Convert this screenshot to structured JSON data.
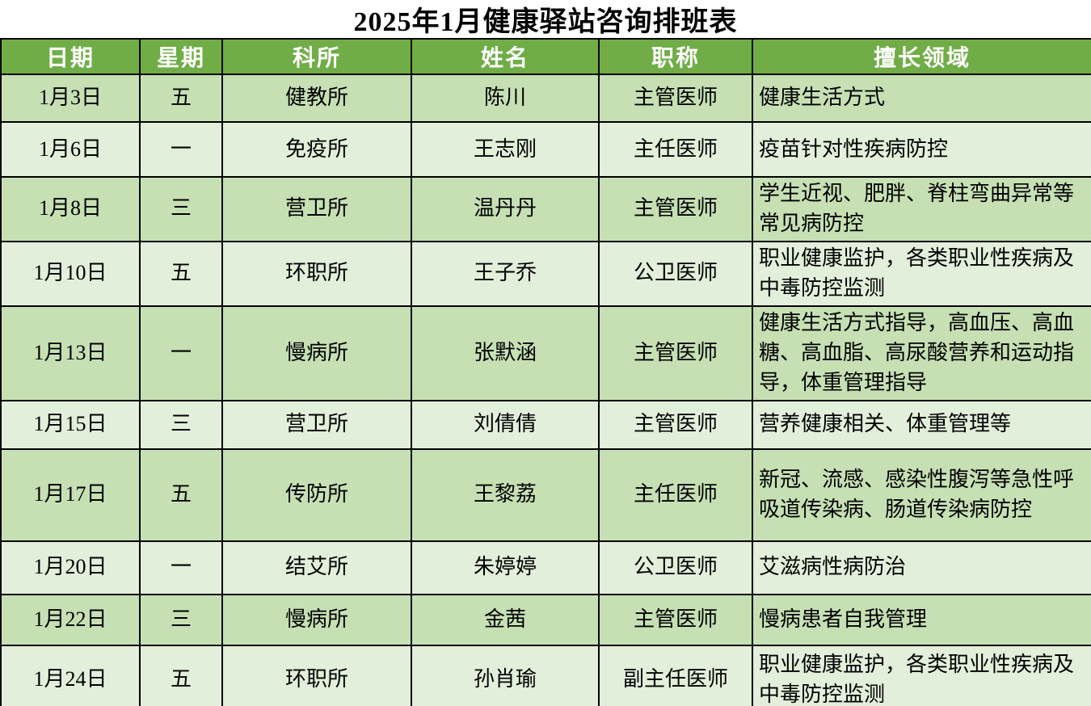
{
  "title": "2025年1月健康驿站咨询排班表",
  "table": {
    "headers": [
      "日期",
      "星期",
      "科所",
      "姓名",
      "职称",
      "擅长领域"
    ],
    "rows": [
      {
        "date": "1月3日",
        "weekday": "五",
        "department": "健教所",
        "name": "陈川",
        "job_title": "主管医师",
        "expertise": "健康生活方式"
      },
      {
        "date": "1月6日",
        "weekday": "一",
        "department": "免疫所",
        "name": "王志刚",
        "job_title": "主任医师",
        "expertise": "疫苗针对性疾病防控"
      },
      {
        "date": "1月8日",
        "weekday": "三",
        "department": "营卫所",
        "name": "温丹丹",
        "job_title": "主管医师",
        "expertise": "学生近视、肥胖、脊柱弯曲异常等常见病防控"
      },
      {
        "date": "1月10日",
        "weekday": "五",
        "department": "环职所",
        "name": "王子乔",
        "job_title": "公卫医师",
        "expertise": "职业健康监护，各类职业性疾病及中毒防控监测"
      },
      {
        "date": "1月13日",
        "weekday": "一",
        "department": "慢病所",
        "name": "张默涵",
        "job_title": "主管医师",
        "expertise": "健康生活方式指导，高血压、高血糖、高血脂、高尿酸营养和运动指导，体重管理指导"
      },
      {
        "date": "1月15日",
        "weekday": "三",
        "department": "营卫所",
        "name": "刘倩倩",
        "job_title": "主管医师",
        "expertise": "营养健康相关、体重管理等"
      },
      {
        "date": "1月17日",
        "weekday": "五",
        "department": "传防所",
        "name": "王黎荔",
        "job_title": "主任医师",
        "expertise": "新冠、流感、感染性腹泻等急性呼吸道传染病、肠道传染病防控"
      },
      {
        "date": "1月20日",
        "weekday": "一",
        "department": "结艾所",
        "name": "朱婷婷",
        "job_title": "公卫医师",
        "expertise": "艾滋病性病防治"
      },
      {
        "date": "1月22日",
        "weekday": "三",
        "department": "慢病所",
        "name": "金茜",
        "job_title": "主管医师",
        "expertise": "慢病患者自我管理"
      },
      {
        "date": "1月24日",
        "weekday": "五",
        "department": "环职所",
        "name": "孙肖瑜",
        "job_title": "副主任医师",
        "expertise": "职业健康监护，各类职业性疾病及中毒防控监测"
      }
    ]
  },
  "colors": {
    "header_bg": "#70AD47",
    "header_text": "#FFFFFF",
    "row_odd_bg": "#C6E0B4",
    "row_even_bg": "#E2EFDA",
    "border": "#000000"
  }
}
